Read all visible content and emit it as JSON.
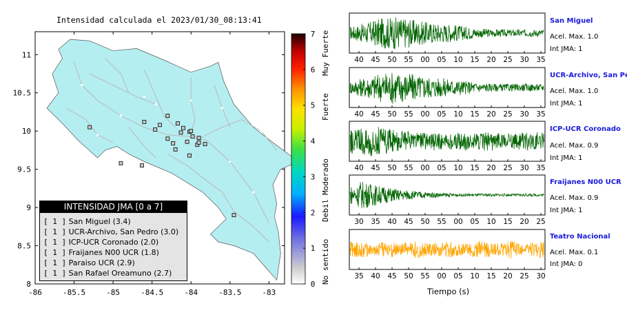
{
  "map": {
    "title": "Intensidad calculada el 2023/01/30_08:13:41",
    "x_ticks": [
      "-86",
      "-85.5",
      "-85",
      "-84.5",
      "-84",
      "-83.5",
      "-83"
    ],
    "y_ticks": [
      "11",
      "10.5",
      "10",
      "9.5",
      "9",
      "8.5",
      "8"
    ],
    "xlim": [
      -86,
      -82.8
    ],
    "ylim": [
      8,
      11.3
    ],
    "land_color": "#b5eef0",
    "road_color": "#b8b8b8"
  },
  "colorbar": {
    "ticks": [
      "0",
      "1",
      "2",
      "3",
      "4",
      "5",
      "6",
      "7"
    ],
    "categories": [
      "No sentido",
      "Debil",
      "Moderado",
      "Fuerte",
      "Muy Fuerte"
    ]
  },
  "legend": {
    "title": "INTENSIDAD JMA [0 a 7]",
    "items": [
      {
        "tag": "[ 1 ]",
        "name": "San Miguel (3.4)"
      },
      {
        "tag": "[ 1 ]",
        "name": "UCR-Archivo, San Pedro (3.0)"
      },
      {
        "tag": "[ 1 ]",
        "name": "ICP-UCR Coronado (2.0)"
      },
      {
        "tag": "[ 1 ]",
        "name": "Fraijanes N00 UCR (1.8)"
      },
      {
        "tag": "[ 1 ]",
        "name": "Paraiso UCR (2.9)"
      },
      {
        "tag": "[ 1 ]",
        "name": "San Rafael Oreamuno (2.7)"
      }
    ]
  },
  "stations": [
    {
      "name": "San Miguel",
      "acel": "Acel. Max. 1.0",
      "int": "Int JMA: 1",
      "color": "#006400",
      "ticks": [
        "40",
        "45",
        "50",
        "55",
        "00",
        "05",
        "10",
        "15",
        "20",
        "25",
        "30",
        "35"
      ]
    },
    {
      "name": "UCR-Archivo, San Pedro",
      "acel": "Acel. Max. 1.0",
      "int": "Int JMA: 1",
      "color": "#006400",
      "ticks": [
        "40",
        "45",
        "50",
        "55",
        "00",
        "05",
        "10",
        "15",
        "20",
        "25",
        "30",
        "35"
      ]
    },
    {
      "name": "ICP-UCR Coronado",
      "acel": "Acel. Max. 0.9",
      "int": "Int JMA: 1",
      "color": "#006400",
      "ticks": [
        "40",
        "45",
        "50",
        "55",
        "00",
        "05",
        "10",
        "15",
        "20",
        "25",
        "30",
        "35"
      ]
    },
    {
      "name": "Fraijanes N00 UCR",
      "acel": "Acel. Max. 0.9",
      "int": "Int JMA: 1",
      "color": "#006400",
      "ticks": [
        "30",
        "35",
        "40",
        "45",
        "50",
        "55",
        "00",
        "05",
        "10",
        "15",
        "20",
        "25"
      ]
    },
    {
      "name": "Teatro Nacional",
      "acel": "Acel. Max. 0.1",
      "int": "Int JMA: 0",
      "color": "#ffa500",
      "ticks": [
        "35",
        "40",
        "45",
        "50",
        "55",
        "00",
        "05",
        "10",
        "15",
        "20",
        "25",
        "30"
      ]
    }
  ],
  "waveform_xlabel": "Tiempo (s)",
  "chart_data": [
    {
      "type": "scatter",
      "title": "Intensidad calculada el 2023/01/30_08:13:41",
      "xlabel": "",
      "ylabel": "",
      "xlim": [
        -86,
        -82.8
      ],
      "ylim": [
        8,
        11.3
      ],
      "x_ticks": [
        -86,
        -85.5,
        -85,
        -84.5,
        -84,
        -83.5,
        -83
      ],
      "y_ticks": [
        8,
        8.5,
        9,
        9.5,
        10,
        10.5,
        11
      ],
      "colorbar": {
        "range": [
          0,
          7
        ],
        "labels": [
          "No sentido",
          "Debil",
          "Moderado",
          "Fuerte",
          "Muy Fuerte"
        ]
      },
      "series": [
        {
          "name": "",
          "points": [
            {
              "x": -84.3,
              "y": 10.2
            },
            {
              "x": -84.17,
              "y": 10.1
            },
            {
              "x": -84.13,
              "y": 9.98
            },
            {
              "x": -84.02,
              "y": 9.99
            },
            {
              "x": -84.0,
              "y": 10.0
            },
            {
              "x": -83.98,
              "y": 9.93
            },
            {
              "x": -83.92,
              "y": 9.82
            },
            {
              "x": -83.9,
              "y": 9.85
            },
            {
              "x": -83.82,
              "y": 9.83
            },
            {
              "x": -83.9,
              "y": 9.91
            },
            {
              "x": -84.3,
              "y": 9.9
            },
            {
              "x": -84.23,
              "y": 9.84
            },
            {
              "x": -84.4,
              "y": 10.08
            },
            {
              "x": -84.2,
              "y": 9.76
            },
            {
              "x": -84.02,
              "y": 9.68
            },
            {
              "x": -84.6,
              "y": 10.12
            },
            {
              "x": -84.46,
              "y": 10.02
            },
            {
              "x": -85.3,
              "y": 10.05
            },
            {
              "x": -84.9,
              "y": 9.58
            },
            {
              "x": -84.63,
              "y": 9.55
            },
            {
              "x": -84.1,
              "y": 10.04
            },
            {
              "x": -84.05,
              "y": 9.86
            },
            {
              "x": -83.45,
              "y": 8.9
            }
          ]
        }
      ]
    },
    {
      "type": "line",
      "title": "San Miguel",
      "xlabel": "Tiempo (s)",
      "ylabel": "",
      "x_ticks": [
        "40",
        "45",
        "50",
        "55",
        "00",
        "05",
        "10",
        "15",
        "20",
        "25",
        "30",
        "35"
      ],
      "series": [
        {
          "name": "San Miguel",
          "peak": 1.0
        }
      ]
    },
    {
      "type": "line",
      "title": "UCR-Archivo, San Pedro",
      "xlabel": "Tiempo (s)",
      "ylabel": "",
      "x_ticks": [
        "40",
        "45",
        "50",
        "55",
        "00",
        "05",
        "10",
        "15",
        "20",
        "25",
        "30",
        "35"
      ],
      "series": [
        {
          "name": "UCR-Archivo, San Pedro",
          "peak": 1.0
        }
      ]
    },
    {
      "type": "line",
      "title": "ICP-UCR Coronado",
      "xlabel": "Tiempo (s)",
      "ylabel": "",
      "x_ticks": [
        "40",
        "45",
        "50",
        "55",
        "00",
        "05",
        "10",
        "15",
        "20",
        "25",
        "30",
        "35"
      ],
      "series": [
        {
          "name": "ICP-UCR Coronado",
          "peak": 0.9
        }
      ]
    },
    {
      "type": "line",
      "title": "Fraijanes N00 UCR",
      "xlabel": "Tiempo (s)",
      "ylabel": "",
      "x_ticks": [
        "30",
        "35",
        "40",
        "45",
        "50",
        "55",
        "00",
        "05",
        "10",
        "15",
        "20",
        "25"
      ],
      "series": [
        {
          "name": "Fraijanes N00 UCR",
          "peak": 0.9
        }
      ]
    },
    {
      "type": "line",
      "title": "Teatro Nacional",
      "xlabel": "Tiempo (s)",
      "ylabel": "",
      "x_ticks": [
        "35",
        "40",
        "45",
        "50",
        "55",
        "00",
        "05",
        "10",
        "15",
        "20",
        "25",
        "30"
      ],
      "series": [
        {
          "name": "Teatro Nacional",
          "peak": 0.1
        }
      ]
    }
  ]
}
